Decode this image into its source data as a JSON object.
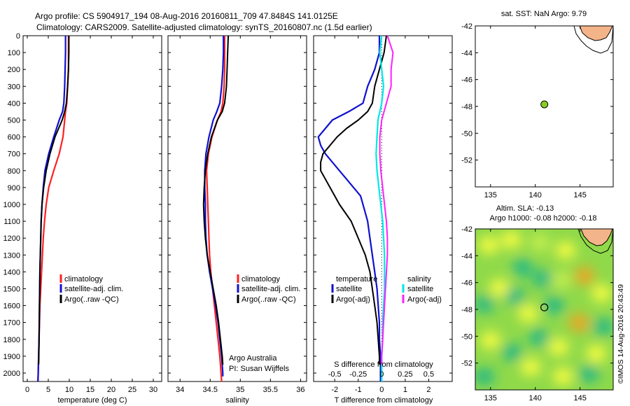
{
  "header": {
    "line1": "Argo profile: CS 5904917_194 08-Aug-2016 20160811_709 47.8484S 141.0125E",
    "line2": "Climatology: CARS2009. Satellite-adjusted climatology: synTS_20160807.nc (1.5d earlier)"
  },
  "colors": {
    "climatology": "#ff2020",
    "satellite_clim": "#1010d0",
    "argo": "#000000",
    "temp_satellite": "#1010d0",
    "temp_argo": "#000000",
    "sal_satellite": "#00e8e8",
    "sal_argo": "#ff20ff",
    "land": "#f4b489",
    "argo_marker": "#88cc22"
  },
  "chart_data": [
    {
      "type": "line",
      "id": "temperature",
      "xlabel": "temperature (deg C)",
      "ylabel": "",
      "xlim": [
        -1,
        32
      ],
      "ylim": [
        2050,
        0
      ],
      "xticks": [
        "0",
        "5",
        "10",
        "15",
        "20",
        "25",
        "30"
      ],
      "yticks": [
        "0",
        "100",
        "200",
        "300",
        "400",
        "500",
        "600",
        "700",
        "800",
        "900",
        "1000",
        "1100",
        "1200",
        "1300",
        "1400",
        "1500",
        "1600",
        "1700",
        "1800",
        "1900",
        "2000"
      ],
      "legend": [
        "climatology",
        "satellite-adj. clim.",
        "Argo(..raw -QC)"
      ],
      "series": [
        {
          "name": "climatology",
          "depth": [
            0,
            100,
            200,
            300,
            400,
            450,
            500,
            600,
            700,
            800,
            900,
            1000,
            1100,
            1200,
            1300,
            1400,
            1500,
            1600,
            1700,
            1800,
            1900,
            2000,
            2050
          ],
          "values": [
            9.8,
            9.8,
            9.8,
            9.6,
            9.4,
            9.1,
            8.9,
            8.5,
            7.6,
            6.3,
            5.1,
            4.5,
            4.1,
            3.8,
            3.6,
            3.4,
            3.2,
            3.0,
            2.9,
            2.8,
            2.7,
            2.6,
            2.5
          ]
        },
        {
          "name": "satellite-adj. clim.",
          "depth": [
            0,
            100,
            200,
            300,
            400,
            450,
            500,
            600,
            700,
            800,
            900,
            1000,
            1100,
            1200,
            1300,
            1400,
            1500,
            1600,
            1700,
            1800,
            1900,
            2000,
            2050
          ],
          "values": [
            9.1,
            9.1,
            9.0,
            8.9,
            8.7,
            8.4,
            7.6,
            6.3,
            5.1,
            4.2,
            3.8,
            3.5,
            3.3,
            3.2,
            3.1,
            3.0,
            2.95,
            2.9,
            2.85,
            2.8,
            2.7,
            2.6,
            2.55
          ]
        },
        {
          "name": "Argo(..raw -QC)",
          "depth": [
            0,
            100,
            200,
            300,
            400,
            450,
            500,
            600,
            700,
            800,
            900,
            1000,
            1100,
            1200,
            1300,
            1400,
            1500,
            1600,
            1700,
            1800,
            1900,
            1950
          ],
          "values": [
            9.9,
            9.9,
            9.8,
            9.6,
            9.3,
            8.9,
            8.3,
            6.6,
            5.4,
            4.5,
            3.9,
            3.5,
            3.3,
            3.2,
            3.1,
            3.0,
            2.95,
            2.9,
            2.85,
            2.8,
            2.75,
            2.7
          ]
        }
      ]
    },
    {
      "type": "line",
      "id": "salinity",
      "xlabel": "salinity",
      "xlim": [
        33.8,
        36.1
      ],
      "ylim": [
        2050,
        0
      ],
      "xticks": [
        "34",
        "34.5",
        "35",
        "35.5",
        "36"
      ],
      "legend": [
        "climatology",
        "satellite-adj. clim.",
        "Argo(..raw -QC)"
      ],
      "annotation": [
        "Argo Australia",
        "PI: Susan Wijffels"
      ],
      "series": [
        {
          "name": "climatology",
          "depth": [
            0,
            100,
            200,
            300,
            400,
            450,
            500,
            600,
            700,
            800,
            900,
            1000,
            1100,
            1200,
            1300,
            1400,
            1500,
            1600,
            1700,
            1800,
            1900,
            2000,
            2050
          ],
          "values": [
            34.74,
            34.74,
            34.74,
            34.73,
            34.71,
            34.68,
            34.62,
            34.53,
            34.47,
            34.44,
            34.45,
            34.46,
            34.47,
            34.48,
            34.49,
            34.51,
            34.54,
            34.57,
            34.6,
            34.63,
            34.66,
            34.68,
            34.69
          ]
        },
        {
          "name": "satellite-adj. clim.",
          "depth": [
            0,
            100,
            200,
            300,
            400,
            450,
            500,
            600,
            700,
            800,
            900,
            1000,
            1100,
            1200,
            1300,
            1400,
            1500,
            1600,
            1700,
            1800,
            1900,
            2000,
            2020
          ],
          "values": [
            34.72,
            34.72,
            34.71,
            34.69,
            34.66,
            34.61,
            34.55,
            34.48,
            34.43,
            34.41,
            34.41,
            34.42,
            34.42,
            34.43,
            34.45,
            34.49,
            34.54,
            34.59,
            34.63,
            34.66,
            34.69,
            34.71,
            34.71
          ]
        },
        {
          "name": "Argo(..raw -QC)",
          "depth": [
            0,
            100,
            200,
            300,
            400,
            450,
            500,
            600,
            700,
            800,
            900,
            1000,
            1100,
            1200,
            1300,
            1400,
            1500,
            1600,
            1700,
            1800,
            1900,
            1950
          ],
          "values": [
            34.8,
            34.79,
            34.78,
            34.77,
            34.74,
            34.7,
            34.62,
            34.52,
            34.46,
            34.42,
            34.4,
            34.39,
            34.4,
            34.42,
            34.45,
            34.5,
            34.55,
            34.6,
            34.64,
            34.67,
            34.7,
            34.71
          ]
        }
      ]
    },
    {
      "type": "line",
      "id": "difference",
      "xlabel": "T difference from climatology",
      "xlim": [
        -2.9,
        3.0
      ],
      "ylim": [
        2050,
        0
      ],
      "xticks": [
        "-2",
        "-1",
        "0",
        "1",
        "2"
      ],
      "top_axis_label": "S difference from climatology",
      "top_xticks": [
        "-0.5",
        "-0.25",
        "0",
        "0.25",
        "0.5"
      ],
      "top_xlim": [
        -0.725,
        0.75
      ],
      "legend_titles": [
        "temperature",
        "salinity"
      ],
      "legend": [
        "satellite",
        "Argo(-adj)",
        "satellite",
        "Argo(-adj)"
      ],
      "series": [
        {
          "name": "temperature satellite",
          "depth": [
            0,
            100,
            200,
            300,
            400,
            450,
            500,
            550,
            600,
            650,
            700,
            750,
            800,
            850,
            900,
            950,
            1000,
            1100,
            1200,
            1300,
            1400,
            1500,
            1600,
            1700,
            1800,
            1900,
            2000,
            2050
          ],
          "values": [
            -0.1,
            -0.1,
            -0.3,
            -0.6,
            -0.8,
            -1.4,
            -2.1,
            -2.4,
            -2.7,
            -2.6,
            -2.4,
            -2.1,
            -1.8,
            -1.5,
            -1.2,
            -0.9,
            -0.8,
            -0.6,
            -0.5,
            -0.4,
            -0.3,
            -0.2,
            -0.15,
            -0.1,
            -0.1,
            -0.05,
            -0.05,
            -0.05
          ]
        },
        {
          "name": "temperature Argo(-adj)",
          "depth": [
            0,
            100,
            200,
            300,
            400,
            450,
            500,
            550,
            600,
            650,
            700,
            750,
            800,
            850,
            900,
            950,
            1000,
            1100,
            1200,
            1300,
            1400,
            1500,
            1600,
            1700,
            1800,
            1900,
            1950
          ],
          "values": [
            0.2,
            0.1,
            -0.1,
            -0.3,
            -0.4,
            -0.6,
            -1.0,
            -1.5,
            -1.9,
            -2.2,
            -2.5,
            -2.6,
            -2.6,
            -2.4,
            -2.2,
            -2.0,
            -1.8,
            -1.3,
            -1.0,
            -0.7,
            -0.5,
            -0.4,
            -0.3,
            -0.2,
            -0.15,
            -0.1,
            -0.1
          ]
        },
        {
          "name": "salinity satellite",
          "depth": [
            0,
            100,
            200,
            300,
            400,
            500,
            600,
            700,
            800,
            900,
            1000,
            1100,
            1200,
            1300,
            1400,
            1500,
            1600,
            1700,
            1800,
            1900,
            2000,
            2050
          ],
          "values": [
            0.0,
            -0.02,
            0.0,
            0.02,
            0.0,
            -0.04,
            -0.05,
            -0.06,
            -0.05,
            -0.03,
            -0.01,
            0.01,
            0.02,
            0.03,
            0.03,
            0.03,
            0.02,
            0.01,
            0.01,
            0.0,
            0.0,
            0.0
          ]
        },
        {
          "name": "salinity Argo(-adj)",
          "depth": [
            0,
            100,
            200,
            300,
            400,
            500,
            600,
            700,
            800,
            900,
            1000,
            1100,
            1200,
            1300,
            1400,
            1500,
            1600,
            1700,
            1800,
            1900,
            1950
          ],
          "values": [
            0.06,
            0.12,
            0.1,
            0.1,
            0.05,
            0.0,
            -0.02,
            -0.02,
            -0.01,
            0.01,
            0.03,
            0.05,
            0.06,
            0.06,
            0.05,
            0.04,
            0.03,
            0.02,
            0.01,
            0.0,
            0.0
          ]
        }
      ]
    },
    {
      "type": "scatter",
      "id": "sst_map",
      "title": "sat. SST: NaN Argo: 9.79",
      "xlim": [
        133.3,
        148.7
      ],
      "ylim": [
        -54,
        -42
      ],
      "xticks": [
        "135",
        "140",
        "145"
      ],
      "yticks": [
        "-42",
        "-44",
        "-46",
        "-48",
        "-50",
        "-52"
      ],
      "points": [
        {
          "lon": 141.0125,
          "lat": -47.8484
        }
      ]
    },
    {
      "type": "heatmap",
      "id": "sla_map",
      "title_line1": "Altim. SLA: -0.13",
      "title_line2": "Argo h1000: -0.08  h2000: -0.18",
      "xlim": [
        133.3,
        148.7
      ],
      "ylim": [
        -54,
        -42
      ],
      "xticks": [
        "135",
        "140",
        "145"
      ],
      "yticks": [
        "-42",
        "-44",
        "-46",
        "-48",
        "-50",
        "-52"
      ],
      "points": [
        {
          "lon": 141.0125,
          "lat": -47.8484
        }
      ],
      "blobs": [
        {
          "lon": 134.8,
          "lat": -43.2,
          "kind": "yellow"
        },
        {
          "lon": 137.3,
          "lat": -42.8,
          "kind": "yellow"
        },
        {
          "lon": 140.5,
          "lat": -43.0,
          "kind": "lightgreen"
        },
        {
          "lon": 143.4,
          "lat": -43.6,
          "kind": "yellow"
        },
        {
          "lon": 138.6,
          "lat": -44.9,
          "kind": "teal"
        },
        {
          "lon": 140.8,
          "lat": -45.7,
          "kind": "teal"
        },
        {
          "lon": 142.9,
          "lat": -45.8,
          "kind": "lightgreen"
        },
        {
          "lon": 145.5,
          "lat": -45.5,
          "kind": "orange"
        },
        {
          "lon": 136.0,
          "lat": -46.4,
          "kind": "yellow"
        },
        {
          "lon": 147.4,
          "lat": -46.8,
          "kind": "yellow"
        },
        {
          "lon": 134.3,
          "lat": -47.6,
          "kind": "teal"
        },
        {
          "lon": 137.7,
          "lat": -47.0,
          "kind": "teal"
        },
        {
          "lon": 139.2,
          "lat": -48.3,
          "kind": "yellow"
        },
        {
          "lon": 142.1,
          "lat": -47.7,
          "kind": "teal"
        },
        {
          "lon": 144.9,
          "lat": -49.0,
          "kind": "orange"
        },
        {
          "lon": 140.4,
          "lat": -50.1,
          "kind": "teal"
        },
        {
          "lon": 135.0,
          "lat": -50.3,
          "kind": "yellow"
        },
        {
          "lon": 137.4,
          "lat": -51.2,
          "kind": "teal"
        },
        {
          "lon": 142.6,
          "lat": -50.8,
          "kind": "yellow"
        },
        {
          "lon": 146.8,
          "lat": -51.3,
          "kind": "yellow"
        },
        {
          "lon": 139.5,
          "lat": -52.3,
          "kind": "yellow"
        },
        {
          "lon": 134.3,
          "lat": -53.0,
          "kind": "teal"
        },
        {
          "lon": 143.1,
          "lat": -53.0,
          "kind": "yellow"
        },
        {
          "lon": 147.6,
          "lat": -49.3,
          "kind": "teal"
        },
        {
          "lon": 146.0,
          "lat": -52.8,
          "kind": "teal"
        }
      ],
      "side_label": "©IMOS 14-Aug-2016 20:43:49"
    }
  ]
}
